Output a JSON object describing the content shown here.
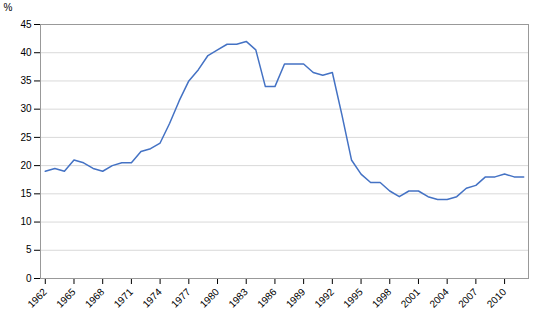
{
  "chart_data": {
    "type": "line",
    "x": [
      1962,
      1963,
      1964,
      1965,
      1966,
      1967,
      1968,
      1969,
      1970,
      1971,
      1972,
      1973,
      1974,
      1975,
      1976,
      1977,
      1978,
      1979,
      1980,
      1981,
      1982,
      1983,
      1984,
      1985,
      1986,
      1987,
      1988,
      1989,
      1990,
      1991,
      1992,
      1993,
      1994,
      1995,
      1996,
      1997,
      1998,
      1999,
      2000,
      2001,
      2002,
      2003,
      2004,
      2005,
      2006,
      2007,
      2008,
      2009,
      2010,
      2011,
      2012
    ],
    "values": [
      19.0,
      19.5,
      19.0,
      21.0,
      20.5,
      19.5,
      19.0,
      20.0,
      20.5,
      20.5,
      22.5,
      23.0,
      24.0,
      27.5,
      31.5,
      35.0,
      37.0,
      39.5,
      40.5,
      41.5,
      41.5,
      42.0,
      40.5,
      34.0,
      34.0,
      38.0,
      38.0,
      38.0,
      36.5,
      36.0,
      36.5,
      29.0,
      21.0,
      18.5,
      17.0,
      17.0,
      15.5,
      14.5,
      15.5,
      15.5,
      14.5,
      14.0,
      14.0,
      14.5,
      16.0,
      16.5,
      18.0,
      18.0,
      18.5,
      18.0,
      18.0
    ],
    "color": "#4472C4",
    "ylabel": "%",
    "xlim": [
      1961.5,
      2012.5
    ],
    "xticks": [
      1962,
      1965,
      1968,
      1971,
      1974,
      1977,
      1980,
      1983,
      1986,
      1989,
      1992,
      1995,
      1998,
      2001,
      2004,
      2007,
      2010
    ],
    "ylim": [
      0,
      45
    ],
    "yticks": [
      0,
      5,
      10,
      15,
      20,
      25,
      30,
      35,
      40,
      45
    ],
    "grid": true
  }
}
